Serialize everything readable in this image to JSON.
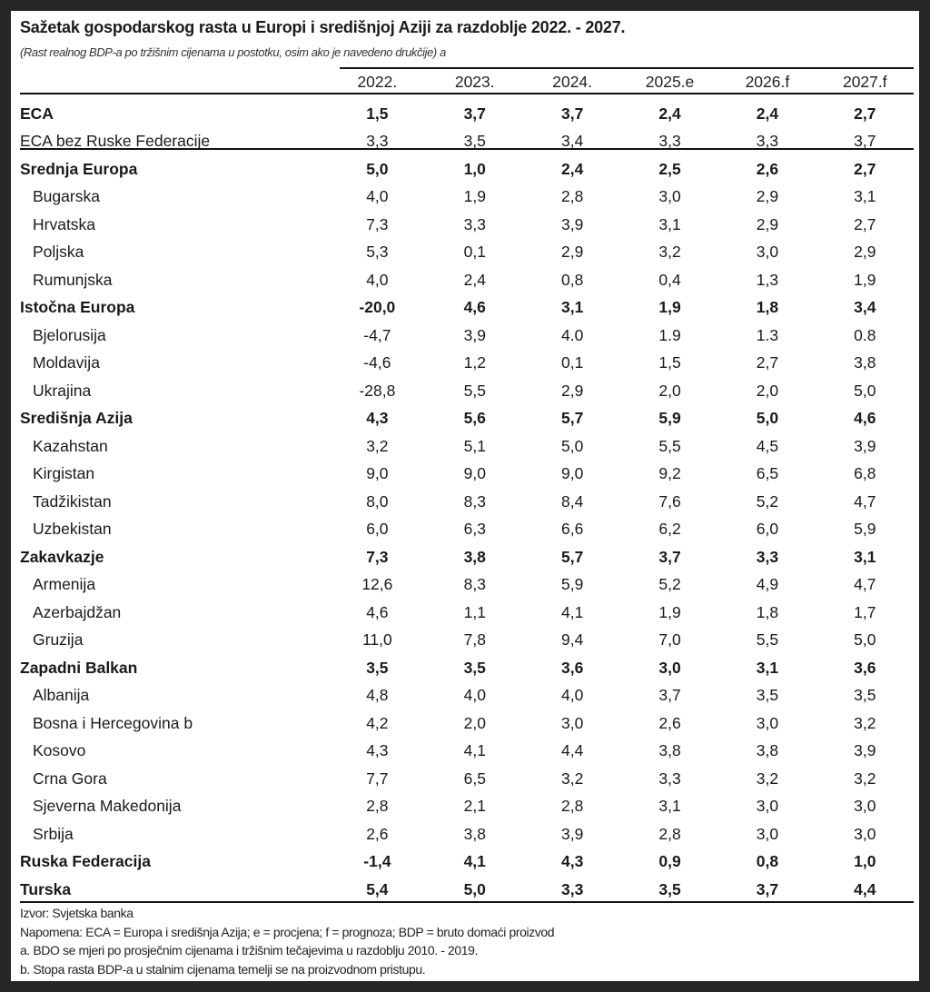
{
  "title": "Sažetak gospodarskog rasta u Europi i središnjoj Aziji za razdoblje 2022. - 2027.",
  "subtitle": "(Rast realnog BDP-a po tržišnim cijenama u postotku, osim ako je navedeno drukčije) a",
  "columns": [
    "2022.",
    "2023.",
    "2024.",
    "2025.e",
    "2026.f",
    "2027.f"
  ],
  "rows": [
    {
      "name": "ECA",
      "bold": true,
      "values": [
        "1,5",
        "3,7",
        "3,7",
        "2,4",
        "2,4",
        "2,7"
      ]
    },
    {
      "name": "ECA bez Ruske Federacije",
      "bold": false,
      "values": [
        "3,3",
        "3,5",
        "3,4",
        "3,3",
        "3,3",
        "3,7"
      ]
    },
    {
      "name": "Srednja Europa",
      "bold": true,
      "values": [
        "5,0",
        "1,0",
        "2,4",
        "2,5",
        "2,6",
        "2,7"
      ]
    },
    {
      "name": "Bugarska",
      "sub": true,
      "values": [
        "4,0",
        "1,9",
        "2,8",
        "3,0",
        "2,9",
        "3,1"
      ]
    },
    {
      "name": "Hrvatska",
      "sub": true,
      "values": [
        "7,3",
        "3,3",
        "3,9",
        "3,1",
        "2,9",
        "2,7"
      ]
    },
    {
      "name": "Poljska",
      "sub": true,
      "values": [
        "5,3",
        "0,1",
        "2,9",
        "3,2",
        "3,0",
        "2,9"
      ]
    },
    {
      "name": "Rumunjska",
      "sub": true,
      "values": [
        "4,0",
        "2,4",
        "0,8",
        "0,4",
        "1,3",
        "1,9"
      ]
    },
    {
      "name": "Istočna Europa",
      "bold": true,
      "values": [
        "-20,0",
        "4,6",
        "3,1",
        "1,9",
        "1,8",
        "3,4"
      ]
    },
    {
      "name": "Bjelorusija",
      "sub": true,
      "values": [
        "-4,7",
        "3,9",
        "4.0",
        "1.9",
        "1.3",
        "0.8"
      ]
    },
    {
      "name": "Moldavija",
      "sub": true,
      "values": [
        "-4,6",
        "1,2",
        "0,1",
        "1,5",
        "2,7",
        "3,8"
      ]
    },
    {
      "name": "Ukrajina",
      "sub": true,
      "values": [
        "-28,8",
        "5,5",
        "2,9",
        "2,0",
        "2,0",
        "5,0"
      ]
    },
    {
      "name": "Središnja Azija",
      "bold": true,
      "values": [
        "4,3",
        "5,6",
        "5,7",
        "5,9",
        "5,0",
        "4,6"
      ]
    },
    {
      "name": "Kazahstan",
      "sub": true,
      "values": [
        "3,2",
        "5,1",
        "5,0",
        "5,5",
        "4,5",
        "3,9"
      ]
    },
    {
      "name": "Kirgistan",
      "sub": true,
      "values": [
        "9,0",
        "9,0",
        "9,0",
        "9,2",
        "6,5",
        "6,8"
      ]
    },
    {
      "name": "Tadžikistan",
      "sub": true,
      "values": [
        "8,0",
        "8,3",
        "8,4",
        "7,6",
        "5,2",
        "4,7"
      ]
    },
    {
      "name": "Uzbekistan",
      "sub": true,
      "values": [
        "6,0",
        "6,3",
        "6,6",
        "6,2",
        "6,0",
        "5,9"
      ]
    },
    {
      "name": "Zakavkazje",
      "bold": true,
      "values": [
        "7,3",
        "3,8",
        "5,7",
        "3,7",
        "3,3",
        "3,1"
      ]
    },
    {
      "name": "Armenija",
      "sub": true,
      "values": [
        "12,6",
        "8,3",
        "5,9",
        "5,2",
        "4,9",
        "4,7"
      ]
    },
    {
      "name": "Azerbajdžan",
      "sub": true,
      "values": [
        "4,6",
        "1,1",
        "4,1",
        "1,9",
        "1,8",
        "1,7"
      ]
    },
    {
      "name": "Gruzija",
      "sub": true,
      "values": [
        "11,0",
        "7,8",
        "9,4",
        "7,0",
        "5,5",
        "5,0"
      ]
    },
    {
      "name": "Zapadni Balkan",
      "bold": true,
      "values": [
        "3,5",
        "3,5",
        "3,6",
        "3,0",
        "3,1",
        "3,6"
      ]
    },
    {
      "name": "Albanija",
      "sub": true,
      "values": [
        "4,8",
        "4,0",
        "4,0",
        "3,7",
        "3,5",
        "3,5"
      ]
    },
    {
      "name": "Bosna i Hercegovina b",
      "sub": true,
      "values": [
        "4,2",
        "2,0",
        "3,0",
        "2,6",
        "3,0",
        "3,2"
      ]
    },
    {
      "name": "Kosovo",
      "sub": true,
      "values": [
        "4,3",
        "4,1",
        "4,4",
        "3,8",
        "3,8",
        "3,9"
      ]
    },
    {
      "name": "Crna Gora",
      "sub": true,
      "values": [
        "7,7",
        "6,5",
        "3,2",
        "3,3",
        "3,2",
        "3,2"
      ]
    },
    {
      "name": "Sjeverna Makedonija",
      "sub": true,
      "values": [
        "2,8",
        "2,1",
        "2,8",
        "3,1",
        "3,0",
        "3,0"
      ]
    },
    {
      "name": "Srbija",
      "sub": true,
      "values": [
        "2,6",
        "3,8",
        "3,9",
        "2,8",
        "3,0",
        "3,0"
      ]
    },
    {
      "name": "Ruska Federacija",
      "bold": true,
      "values": [
        "-1,4",
        "4,1",
        "4,3",
        "0,9",
        "0,8",
        "1,0"
      ]
    },
    {
      "name": "Turska",
      "bold": true,
      "values": [
        "5,4",
        "5,0",
        "3,3",
        "3,5",
        "3,7",
        "4,4"
      ]
    }
  ],
  "notes": [
    "Izvor: Svjetska banka",
    "Napomena: ECA = Europa i središnja Azija; e = procjena; f = prognoza; BDP = bruto domaći proizvod",
    "a. BDO se mjeri po prosječnim cijenama i tržišnim tečajevima u razdoblju 2010. - 2019.",
    "b. Stopa rasta BDP-a u stalnim cijenama temelji se na proizvodnom pristupu."
  ]
}
